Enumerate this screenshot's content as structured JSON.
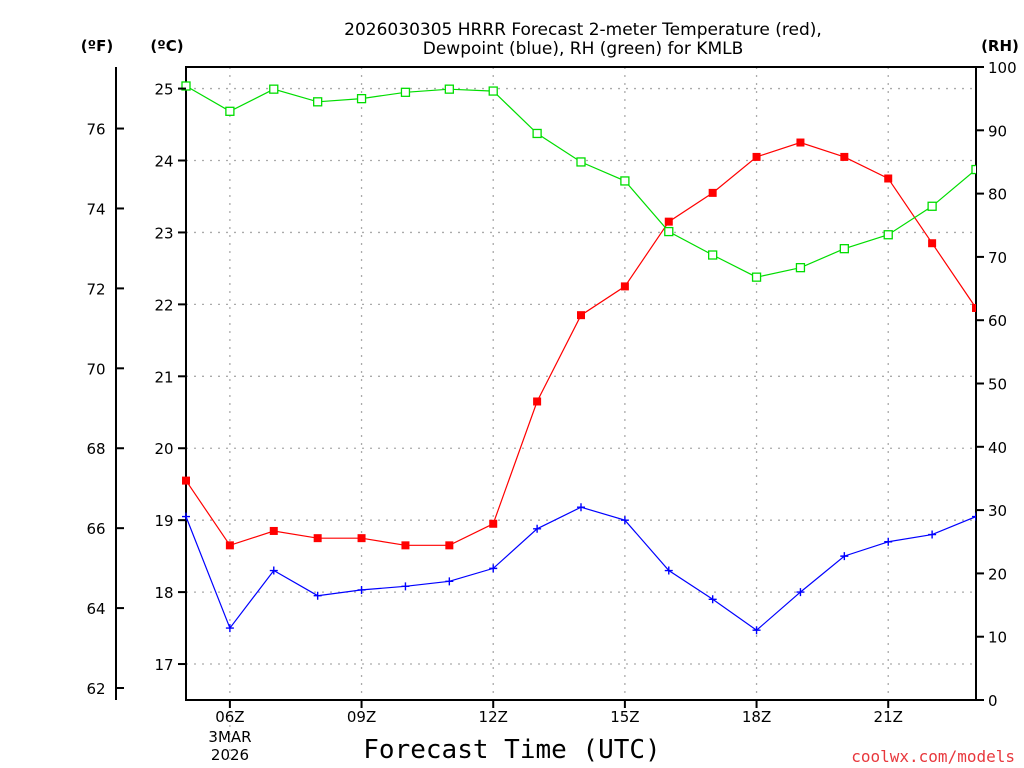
{
  "chart_data": {
    "type": "line",
    "title_line1": "2026030305 HRRR Forecast 2-meter Temperature (red),",
    "title_line2": "Dewpoint (blue), RH (green) for KMLB",
    "xlabel": "Forecast Time (UTC)",
    "credit": "coolwx.com/models",
    "date_label_line1": "3MAR",
    "date_label_line2": "2026",
    "unit_f": "(ºF)",
    "unit_c": "(ºC)",
    "unit_rh": "(RH)",
    "x_hours": [
      5,
      6,
      7,
      8,
      9,
      10,
      11,
      12,
      13,
      14,
      15,
      16,
      17,
      18,
      19,
      20,
      21,
      22,
      23
    ],
    "x_ticks": [
      {
        "hour": 6,
        "label": "06Z"
      },
      {
        "hour": 9,
        "label": "09Z"
      },
      {
        "hour": 12,
        "label": "12Z"
      },
      {
        "hour": 15,
        "label": "15Z"
      },
      {
        "hour": 18,
        "label": "18Z"
      },
      {
        "hour": 21,
        "label": "21Z"
      }
    ],
    "xlim": [
      5,
      23
    ],
    "celsius_ticks": [
      17,
      18,
      19,
      20,
      21,
      22,
      23,
      24,
      25
    ],
    "celsius_range": [
      16.5,
      25.3
    ],
    "fahrenheit_ticks": [
      62,
      64,
      66,
      68,
      70,
      72,
      74,
      76
    ],
    "rh_ticks": [
      0,
      10,
      20,
      30,
      40,
      50,
      60,
      70,
      80,
      90,
      100
    ],
    "rh_range": [
      0,
      100
    ],
    "series": [
      {
        "name": "Temperature",
        "color": "#ff0000",
        "marker": "filled-square",
        "values": [
          19.55,
          18.65,
          18.85,
          18.75,
          18.75,
          18.65,
          18.65,
          18.95,
          20.65,
          21.85,
          22.25,
          23.15,
          23.55,
          24.05,
          24.25,
          24.05,
          23.75,
          22.85,
          21.95
        ]
      },
      {
        "name": "Dewpoint",
        "color": "#0000ff",
        "marker": "plus",
        "values": [
          19.05,
          17.5,
          18.3,
          17.95,
          18.03,
          18.08,
          18.15,
          18.33,
          18.88,
          19.18,
          19.0,
          18.3,
          17.9,
          17.47,
          18.0,
          18.5,
          18.7,
          18.8,
          19.05
        ]
      },
      {
        "name": "RH",
        "color": "#00dd00",
        "marker": "open-square",
        "values": [
          97,
          93,
          96.5,
          94.5,
          95,
          96,
          96.5,
          96.2,
          89.5,
          85,
          82,
          74,
          70.3,
          66.8,
          68.3,
          71.3,
          73.5,
          78,
          83.8
        ]
      }
    ]
  }
}
